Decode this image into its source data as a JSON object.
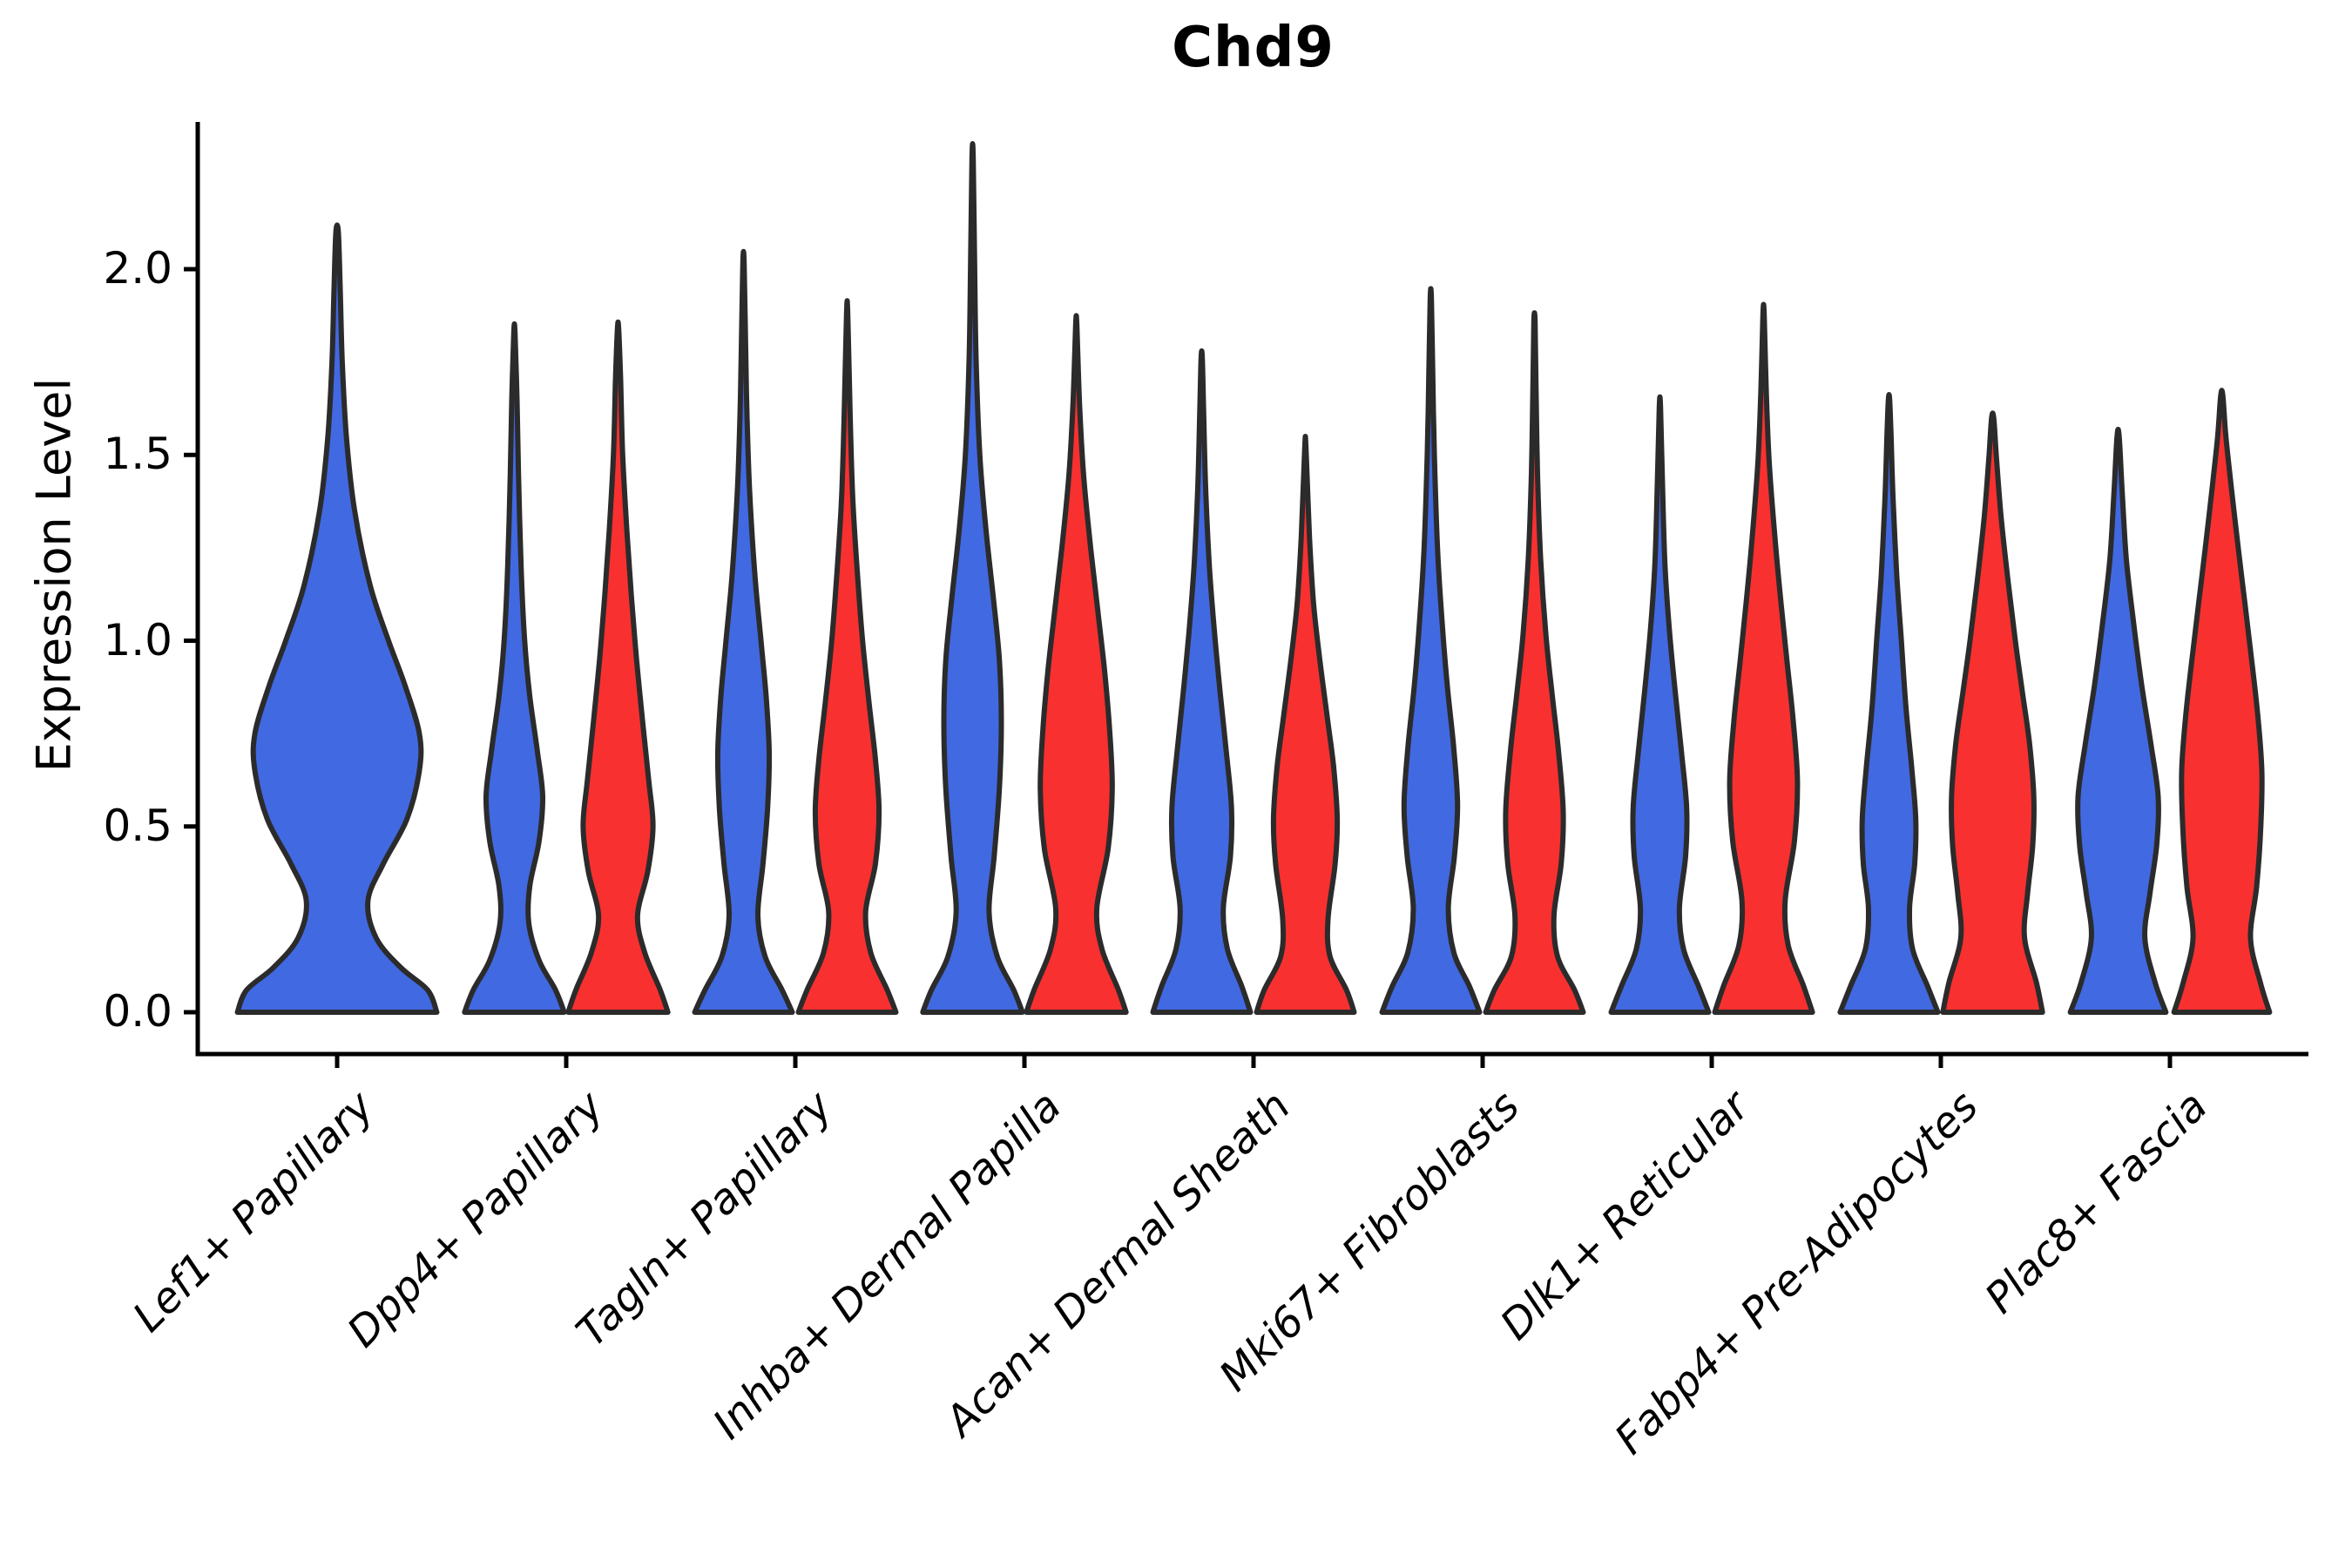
{
  "title": "Chd9",
  "y_axis": {
    "label": "Expression Level",
    "ticks": [
      "2.0",
      "1.5",
      "1.0",
      "0.5",
      "0.0"
    ],
    "tick_values": [
      2.0,
      1.5,
      1.0,
      0.5,
      0.0
    ]
  },
  "x_axis": {
    "categories": [
      "Lef1+ Papillary",
      "Dpp4+ Papillary",
      "Tagln+ Papillary",
      "Inhba+ Dermal Papilla",
      "Acan+ Dermal Sheath",
      "Mki67+ Fibroblasts",
      "Dlk1+ Reticular",
      "Fabp4+ Pre-Adipocytes",
      "Plac8+ Fascia"
    ]
  },
  "colors": {
    "blue": "#4169E1",
    "red": "#F93030",
    "outline": "#2B2B2B",
    "axis": "#000000",
    "background": "#FFFFFF"
  },
  "chart_data": {
    "type": "violin",
    "title": "Chd9",
    "ylabel": "Expression Level",
    "ylim": [
      -0.11,
      2.4
    ],
    "grid": false,
    "legend": "none",
    "categories": [
      "Lef1+ Papillary",
      "Dpp4+ Papillary",
      "Tagln+ Papillary",
      "Inhba+ Dermal Papilla",
      "Acan+ Dermal Sheath",
      "Mki67+ Fibroblasts",
      "Dlk1+ Reticular",
      "Fabp4+ Pre-Adipocytes",
      "Plac8+ Fascia"
    ],
    "series": [
      {
        "name": "blue",
        "color": "#4169E1",
        "max_expression": [
          2.1,
          1.83,
          2.02,
          2.3,
          1.76,
          1.92,
          1.63,
          1.65,
          1.55
        ],
        "density_mode": [
          0.7,
          0.58,
          0.75,
          0.8,
          0.5,
          0.56,
          0.5,
          0.5,
          0.58
        ]
      },
      {
        "name": "red",
        "color": "#F93030",
        "max_expression": [
          null,
          1.84,
          1.88,
          1.85,
          1.52,
          1.86,
          1.88,
          1.6,
          1.66
        ],
        "density_mode": [
          null,
          0.5,
          0.54,
          0.62,
          0.5,
          0.55,
          0.65,
          0.58,
          0.66
        ]
      }
    ],
    "violins": [
      {
        "cat": 0,
        "category": "Lef1+ Papillary",
        "side": "center",
        "color": "blue",
        "width_scale": 2,
        "peak": 2.1,
        "profile": [
          [
            0,
            0.97
          ],
          [
            0.06,
            0.88
          ],
          [
            0.12,
            0.62
          ],
          [
            0.2,
            0.38
          ],
          [
            0.3,
            0.3
          ],
          [
            0.4,
            0.45
          ],
          [
            0.52,
            0.68
          ],
          [
            0.65,
            0.8
          ],
          [
            0.75,
            0.8
          ],
          [
            0.88,
            0.66
          ],
          [
            1.0,
            0.5
          ],
          [
            1.15,
            0.32
          ],
          [
            1.35,
            0.17
          ],
          [
            1.55,
            0.09
          ],
          [
            1.75,
            0.05
          ],
          [
            1.95,
            0.03
          ],
          [
            2.1,
            0.012
          ]
        ]
      },
      {
        "cat": 1,
        "category": "Dpp4+ Papillary",
        "side": "left",
        "color": "blue",
        "peak": 1.83,
        "profile": [
          [
            0,
            0.97
          ],
          [
            0.06,
            0.8
          ],
          [
            0.14,
            0.48
          ],
          [
            0.24,
            0.28
          ],
          [
            0.34,
            0.3
          ],
          [
            0.46,
            0.48
          ],
          [
            0.58,
            0.55
          ],
          [
            0.7,
            0.45
          ],
          [
            0.85,
            0.3
          ],
          [
            1.0,
            0.2
          ],
          [
            1.2,
            0.13
          ],
          [
            1.45,
            0.08
          ],
          [
            1.65,
            0.05
          ],
          [
            1.83,
            0.012
          ]
        ]
      },
      {
        "cat": 1,
        "category": "Dpp4+ Papillary",
        "side": "right",
        "color": "red",
        "peak": 1.84,
        "profile": [
          [
            0,
            0.97
          ],
          [
            0.06,
            0.82
          ],
          [
            0.16,
            0.52
          ],
          [
            0.26,
            0.38
          ],
          [
            0.38,
            0.58
          ],
          [
            0.5,
            0.68
          ],
          [
            0.62,
            0.6
          ],
          [
            0.78,
            0.48
          ],
          [
            0.95,
            0.36
          ],
          [
            1.12,
            0.26
          ],
          [
            1.3,
            0.17
          ],
          [
            1.5,
            0.09
          ],
          [
            1.7,
            0.05
          ],
          [
            1.84,
            0.012
          ]
        ]
      },
      {
        "cat": 2,
        "category": "Tagln+ Papillary",
        "side": "left",
        "color": "blue",
        "peak": 2.02,
        "profile": [
          [
            0,
            0.95
          ],
          [
            0.06,
            0.75
          ],
          [
            0.15,
            0.42
          ],
          [
            0.26,
            0.28
          ],
          [
            0.4,
            0.38
          ],
          [
            0.55,
            0.47
          ],
          [
            0.7,
            0.5
          ],
          [
            0.85,
            0.44
          ],
          [
            1.0,
            0.34
          ],
          [
            1.18,
            0.22
          ],
          [
            1.4,
            0.12
          ],
          [
            1.6,
            0.07
          ],
          [
            1.8,
            0.04
          ],
          [
            2.02,
            0.012
          ]
        ]
      },
      {
        "cat": 2,
        "category": "Tagln+ Papillary",
        "side": "right",
        "color": "red",
        "peak": 1.88,
        "profile": [
          [
            0,
            0.95
          ],
          [
            0.06,
            0.78
          ],
          [
            0.16,
            0.46
          ],
          [
            0.27,
            0.36
          ],
          [
            0.4,
            0.55
          ],
          [
            0.54,
            0.62
          ],
          [
            0.68,
            0.55
          ],
          [
            0.84,
            0.42
          ],
          [
            1.0,
            0.3
          ],
          [
            1.18,
            0.2
          ],
          [
            1.38,
            0.11
          ],
          [
            1.6,
            0.06
          ],
          [
            1.88,
            0.012
          ]
        ]
      },
      {
        "cat": 3,
        "category": "Inhba+ Dermal Papilla",
        "side": "left",
        "color": "blue",
        "peak": 2.3,
        "profile": [
          [
            0,
            0.97
          ],
          [
            0.06,
            0.8
          ],
          [
            0.15,
            0.48
          ],
          [
            0.27,
            0.32
          ],
          [
            0.42,
            0.42
          ],
          [
            0.6,
            0.52
          ],
          [
            0.78,
            0.56
          ],
          [
            0.95,
            0.52
          ],
          [
            1.12,
            0.4
          ],
          [
            1.3,
            0.26
          ],
          [
            1.5,
            0.14
          ],
          [
            1.75,
            0.07
          ],
          [
            2.0,
            0.04
          ],
          [
            2.3,
            0.012
          ]
        ]
      },
      {
        "cat": 3,
        "category": "Inhba+ Dermal Papilla",
        "side": "right",
        "color": "red",
        "peak": 1.85,
        "profile": [
          [
            0,
            0.97
          ],
          [
            0.06,
            0.82
          ],
          [
            0.17,
            0.5
          ],
          [
            0.28,
            0.4
          ],
          [
            0.44,
            0.62
          ],
          [
            0.6,
            0.7
          ],
          [
            0.76,
            0.65
          ],
          [
            0.92,
            0.55
          ],
          [
            1.08,
            0.42
          ],
          [
            1.25,
            0.28
          ],
          [
            1.45,
            0.14
          ],
          [
            1.65,
            0.06
          ],
          [
            1.85,
            0.012
          ]
        ]
      },
      {
        "cat": 4,
        "category": "Acan+ Dermal Sheath",
        "side": "left",
        "color": "blue",
        "peak": 1.76,
        "profile": [
          [
            0,
            0.95
          ],
          [
            0.07,
            0.78
          ],
          [
            0.17,
            0.5
          ],
          [
            0.28,
            0.42
          ],
          [
            0.42,
            0.56
          ],
          [
            0.55,
            0.58
          ],
          [
            0.7,
            0.48
          ],
          [
            0.86,
            0.36
          ],
          [
            1.02,
            0.25
          ],
          [
            1.2,
            0.15
          ],
          [
            1.4,
            0.08
          ],
          [
            1.6,
            0.04
          ],
          [
            1.76,
            0.012
          ]
        ]
      },
      {
        "cat": 4,
        "category": "Acan+ Dermal Sheath",
        "side": "right",
        "color": "red",
        "peak": 1.52,
        "profile": [
          [
            0,
            0.95
          ],
          [
            0.06,
            0.8
          ],
          [
            0.15,
            0.48
          ],
          [
            0.25,
            0.44
          ],
          [
            0.4,
            0.58
          ],
          [
            0.52,
            0.62
          ],
          [
            0.66,
            0.55
          ],
          [
            0.8,
            0.42
          ],
          [
            0.95,
            0.28
          ],
          [
            1.1,
            0.16
          ],
          [
            1.28,
            0.08
          ],
          [
            1.52,
            0.012
          ]
        ]
      },
      {
        "cat": 5,
        "category": "Mki67+ Fibroblasts",
        "side": "left",
        "color": "blue",
        "peak": 1.92,
        "profile": [
          [
            0,
            0.95
          ],
          [
            0.07,
            0.75
          ],
          [
            0.16,
            0.45
          ],
          [
            0.28,
            0.34
          ],
          [
            0.42,
            0.46
          ],
          [
            0.56,
            0.52
          ],
          [
            0.72,
            0.44
          ],
          [
            0.88,
            0.32
          ],
          [
            1.05,
            0.22
          ],
          [
            1.25,
            0.13
          ],
          [
            1.5,
            0.07
          ],
          [
            1.7,
            0.04
          ],
          [
            1.92,
            0.012
          ]
        ]
      },
      {
        "cat": 5,
        "category": "Mki67+ Fibroblasts",
        "side": "right",
        "color": "red",
        "peak": 1.86,
        "profile": [
          [
            0,
            0.95
          ],
          [
            0.06,
            0.78
          ],
          [
            0.15,
            0.45
          ],
          [
            0.26,
            0.38
          ],
          [
            0.4,
            0.52
          ],
          [
            0.54,
            0.56
          ],
          [
            0.7,
            0.47
          ],
          [
            0.86,
            0.34
          ],
          [
            1.02,
            0.22
          ],
          [
            1.22,
            0.12
          ],
          [
            1.45,
            0.06
          ],
          [
            1.68,
            0.03
          ],
          [
            1.86,
            0.012
          ]
        ]
      },
      {
        "cat": 6,
        "category": "Dlk1+ Reticular",
        "side": "left",
        "color": "blue",
        "peak": 1.63,
        "profile": [
          [
            0,
            0.95
          ],
          [
            0.07,
            0.75
          ],
          [
            0.17,
            0.46
          ],
          [
            0.28,
            0.38
          ],
          [
            0.42,
            0.5
          ],
          [
            0.55,
            0.52
          ],
          [
            0.7,
            0.42
          ],
          [
            0.86,
            0.3
          ],
          [
            1.02,
            0.19
          ],
          [
            1.2,
            0.1
          ],
          [
            1.42,
            0.05
          ],
          [
            1.63,
            0.012
          ]
        ]
      },
      {
        "cat": 6,
        "category": "Dlk1+ Reticular",
        "side": "right",
        "color": "red",
        "peak": 1.88,
        "profile": [
          [
            0,
            0.95
          ],
          [
            0.07,
            0.78
          ],
          [
            0.18,
            0.48
          ],
          [
            0.3,
            0.42
          ],
          [
            0.46,
            0.6
          ],
          [
            0.62,
            0.66
          ],
          [
            0.78,
            0.58
          ],
          [
            0.94,
            0.46
          ],
          [
            1.1,
            0.34
          ],
          [
            1.28,
            0.22
          ],
          [
            1.48,
            0.11
          ],
          [
            1.68,
            0.05
          ],
          [
            1.88,
            0.012
          ]
        ]
      },
      {
        "cat": 7,
        "category": "Fabp4+ Pre-Adipocytes",
        "side": "left",
        "color": "blue",
        "peak": 1.65,
        "profile": [
          [
            0,
            0.95
          ],
          [
            0.07,
            0.75
          ],
          [
            0.17,
            0.46
          ],
          [
            0.28,
            0.4
          ],
          [
            0.4,
            0.5
          ],
          [
            0.52,
            0.52
          ],
          [
            0.66,
            0.44
          ],
          [
            0.82,
            0.33
          ],
          [
            1.0,
            0.24
          ],
          [
            1.18,
            0.15
          ],
          [
            1.38,
            0.08
          ],
          [
            1.55,
            0.04
          ],
          [
            1.65,
            0.012
          ]
        ]
      },
      {
        "cat": 7,
        "category": "Fabp4+ Pre-Adipocytes",
        "side": "right",
        "color": "red",
        "peak": 1.6,
        "profile": [
          [
            0,
            0.97
          ],
          [
            0.08,
            0.85
          ],
          [
            0.2,
            0.62
          ],
          [
            0.32,
            0.68
          ],
          [
            0.45,
            0.78
          ],
          [
            0.58,
            0.8
          ],
          [
            0.72,
            0.72
          ],
          [
            0.86,
            0.58
          ],
          [
            1.0,
            0.44
          ],
          [
            1.16,
            0.3
          ],
          [
            1.34,
            0.16
          ],
          [
            1.5,
            0.07
          ],
          [
            1.6,
            0.02
          ]
        ]
      },
      {
        "cat": 8,
        "category": "Plac8+ Fascia",
        "side": "left",
        "color": "blue",
        "peak": 1.55,
        "profile": [
          [
            0,
            0.93
          ],
          [
            0.08,
            0.72
          ],
          [
            0.2,
            0.52
          ],
          [
            0.32,
            0.62
          ],
          [
            0.45,
            0.75
          ],
          [
            0.58,
            0.78
          ],
          [
            0.72,
            0.64
          ],
          [
            0.88,
            0.46
          ],
          [
            1.05,
            0.3
          ],
          [
            1.22,
            0.16
          ],
          [
            1.4,
            0.08
          ],
          [
            1.55,
            0.02
          ]
        ]
      },
      {
        "cat": 8,
        "category": "Plac8+ Fascia",
        "side": "right",
        "color": "red",
        "peak": 1.66,
        "profile": [
          [
            0,
            0.93
          ],
          [
            0.08,
            0.75
          ],
          [
            0.2,
            0.56
          ],
          [
            0.34,
            0.68
          ],
          [
            0.5,
            0.76
          ],
          [
            0.65,
            0.78
          ],
          [
            0.8,
            0.7
          ],
          [
            0.95,
            0.58
          ],
          [
            1.1,
            0.45
          ],
          [
            1.25,
            0.32
          ],
          [
            1.42,
            0.18
          ],
          [
            1.55,
            0.08
          ],
          [
            1.66,
            0.02
          ]
        ]
      }
    ]
  }
}
